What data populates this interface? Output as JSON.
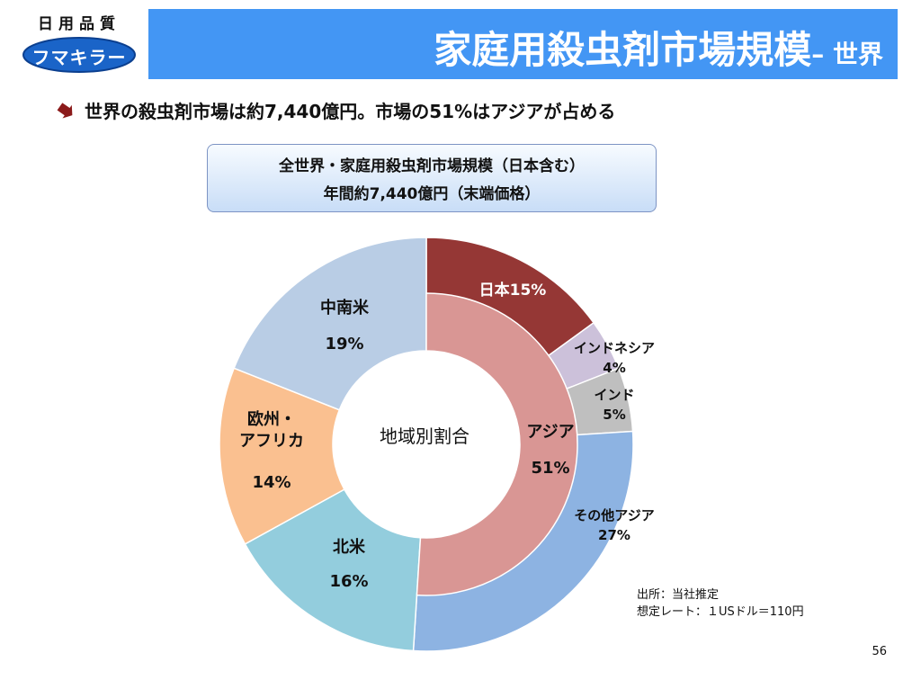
{
  "logo": {
    "top_text": "日用品質",
    "brand_text": "フマキラー",
    "colors": {
      "oval": "#1a64c8"
    }
  },
  "header": {
    "title": "家庭用殺虫剤市場規模",
    "subtitle": "– 世界",
    "bg_color": "#4396f4"
  },
  "bullet": {
    "text": "世界の殺虫剤市場は約7,440億円。市場の51%はアジアが占める",
    "icon": "arrow-down-right-icon"
  },
  "callout": {
    "line1": "全世界・家庭用殺虫剤市場規模（日本含む）",
    "line2": "年間約7,440億円（末端価格）"
  },
  "chart_data": {
    "type": "donut",
    "center_label": "地域別割合",
    "outer_ring": [
      {
        "name": "日本",
        "label": "日本15%",
        "value": 15,
        "color": "#953735"
      },
      {
        "name": "インドネシア",
        "label": "インドネシア",
        "value_label": "4%",
        "value": 4,
        "color": "#ccc1da"
      },
      {
        "name": "インド",
        "label": "インド",
        "value_label": "5%",
        "value": 5,
        "color": "#bfbfbf"
      },
      {
        "name": "その他アジア",
        "label": "その他アジア",
        "value_label": "27%",
        "value": 27,
        "color": "#8db3e2"
      },
      {
        "name": "北米",
        "label": "北米",
        "value_label": "16%",
        "value": 16,
        "color": "#93cddd"
      },
      {
        "name": "欧州・アフリカ",
        "label_lines": [
          "欧州・",
          "アフリカ"
        ],
        "value_label": "14%",
        "value": 14,
        "color": "#fac090"
      },
      {
        "name": "中南米",
        "label": "中南米",
        "value_label": "19%",
        "value": 19,
        "color": "#b9cde5"
      }
    ],
    "inner_ring": [
      {
        "name": "アジア",
        "label": "アジア",
        "value_label": "51%",
        "value": 51,
        "color": "#d99694"
      }
    ]
  },
  "note": {
    "line1": "出所：当社推定",
    "line2": "想定レート：１USドル＝110円"
  },
  "page_number": "56"
}
